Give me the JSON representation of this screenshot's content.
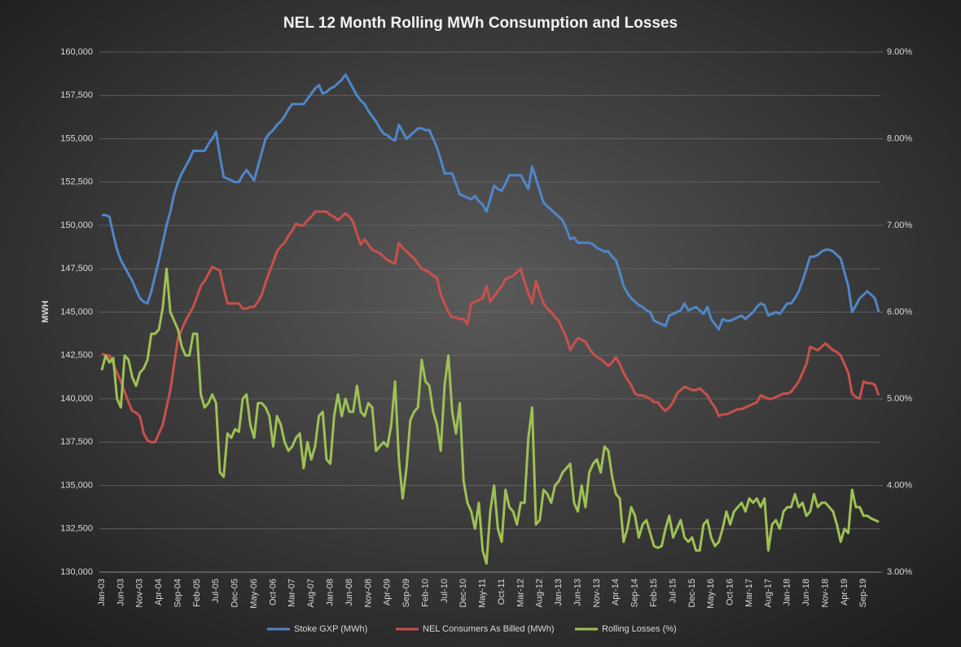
{
  "chart_data": {
    "type": "line",
    "title": "NEL 12 Month Rolling MWh Consumption and Losses",
    "ylabel": "MWH",
    "legend": "bottom",
    "grid": true,
    "categories": [
      "Jan-03",
      null,
      null,
      null,
      null,
      "Jun-03",
      null,
      null,
      null,
      null,
      "Nov-03",
      null,
      null,
      null,
      null,
      "Apr-04",
      null,
      null,
      null,
      null,
      "Sep-04",
      null,
      null,
      null,
      null,
      "Feb-05",
      null,
      null,
      null,
      null,
      "Jul-05",
      null,
      null,
      null,
      null,
      "Dec-05",
      null,
      null,
      null,
      null,
      "May-06",
      null,
      null,
      null,
      null,
      "Oct-06",
      null,
      null,
      null,
      null,
      "Mar-07",
      null,
      null,
      null,
      null,
      "Aug-07",
      null,
      null,
      null,
      null,
      "Jan-08",
      null,
      null,
      null,
      null,
      "Jun-08",
      null,
      null,
      null,
      null,
      "Nov-08",
      null,
      null,
      null,
      null,
      "Apr-09",
      null,
      null,
      null,
      null,
      "Sep-09",
      null,
      null,
      null,
      null,
      "Feb-10",
      null,
      null,
      null,
      null,
      "Jul-10",
      null,
      null,
      null,
      null,
      "Dec-10",
      null,
      null,
      null,
      null,
      "May-11",
      null,
      null,
      null,
      null,
      "Oct-11",
      null,
      null,
      null,
      null,
      "Mar-12",
      null,
      null,
      null,
      null,
      "Aug-12",
      null,
      null,
      null,
      null,
      "Jan-13",
      null,
      null,
      null,
      null,
      "Jun-13",
      null,
      null,
      null,
      null,
      "Nov-13",
      null,
      null,
      null,
      null,
      "Apr-14",
      null,
      null,
      null,
      null,
      "Sep-14",
      null,
      null,
      null,
      null,
      "Feb-15",
      null,
      null,
      null,
      null,
      "Jul-15",
      null,
      null,
      null,
      null,
      "Dec-15",
      null,
      null,
      null,
      null,
      "May-16",
      null,
      null,
      null,
      null,
      "Oct-16",
      null,
      null,
      null,
      null,
      "Mar-17",
      null,
      null,
      null,
      null,
      "Aug-17",
      null,
      null,
      null,
      null,
      "Jan-18",
      null,
      null,
      null,
      null,
      "Jun-18",
      null,
      null,
      null,
      null,
      "Nov-18",
      null,
      null,
      null,
      null,
      "Apr-19",
      null,
      null,
      null,
      null,
      "Sep-19",
      null,
      null,
      null,
      null
    ],
    "ylim": [
      130000,
      160000
    ],
    "yticks": [
      {
        "value": 130000,
        "label": "130,000"
      },
      {
        "value": 132500,
        "label": "132,500"
      },
      {
        "value": 135000,
        "label": "135,000"
      },
      {
        "value": 137500,
        "label": "137,500"
      },
      {
        "value": 140000,
        "label": "140,000"
      },
      {
        "value": 142500,
        "label": "142,500"
      },
      {
        "value": 145000,
        "label": "145,000"
      },
      {
        "value": 147500,
        "label": "147,500"
      },
      {
        "value": 150000,
        "label": "150,000"
      },
      {
        "value": 152500,
        "label": "152,500"
      },
      {
        "value": 155000,
        "label": "155,000"
      },
      {
        "value": 157500,
        "label": "157,500"
      },
      {
        "value": 160000,
        "label": "160,000"
      }
    ],
    "y2lim": [
      3,
      9
    ],
    "y2ticks": [
      {
        "value": 3,
        "label": "3.00%"
      },
      {
        "value": 4,
        "label": "4.00%"
      },
      {
        "value": 5,
        "label": "5.00%"
      },
      {
        "value": 6,
        "label": "6.00%"
      },
      {
        "value": 7,
        "label": "7.00%"
      },
      {
        "value": 8,
        "label": "8.00%"
      },
      {
        "value": 9,
        "label": "9.00%"
      }
    ],
    "series": [
      {
        "name": "Stoke GXP (MWh)",
        "color": "#4f86c9",
        "values": [
          150600,
          150600,
          150500,
          149500,
          148600,
          148000,
          147600,
          147200,
          146800,
          146300,
          145800,
          145600,
          145500,
          146200,
          147100,
          148000,
          149000,
          150000,
          150800,
          151800,
          152500,
          153000,
          153400,
          153800,
          154300,
          154300,
          154300,
          154300,
          154700,
          155000,
          155400,
          154000,
          152800,
          152700,
          152600,
          152500,
          152500,
          152900,
          153200,
          152900,
          152600,
          153400,
          154200,
          155000,
          155300,
          155500,
          155800,
          156000,
          156300,
          156700,
          157000,
          157000,
          157000,
          157000,
          157300,
          157600,
          157900,
          158100,
          157600,
          157700,
          157900,
          158000,
          158200,
          158400,
          158700,
          158300,
          157900,
          157500,
          157200,
          157000,
          156600,
          156300,
          156000,
          155600,
          155300,
          155200,
          155000,
          154900,
          155800,
          155400,
          155000,
          155200,
          155400,
          155600,
          155600,
          155500,
          155500,
          155000,
          154500,
          153800,
          153000,
          153000,
          153000,
          152400,
          151800,
          151700,
          151600,
          151500,
          151700,
          151400,
          151200,
          150800,
          151500,
          152300,
          152100,
          152000,
          152400,
          152900,
          152900,
          152900,
          152900,
          152500,
          152100,
          153400,
          152700,
          152000,
          151300,
          151100,
          150900,
          150700,
          150500,
          150300,
          149800,
          149200,
          149300,
          149000,
          149000,
          149000,
          149000,
          148900,
          148700,
          148600,
          148500,
          148500,
          148200,
          148000,
          147300,
          146500,
          146100,
          145800,
          145600,
          145400,
          145300,
          145100,
          145000,
          144500,
          144400,
          144300,
          144200,
          144800,
          144900,
          145000,
          145100,
          145500,
          145100,
          145200,
          145300,
          145100,
          144900,
          145300,
          144600,
          144300,
          144000,
          144600,
          144500,
          144500,
          144600,
          144700,
          144800,
          144600,
          144800,
          145000,
          145300,
          145500,
          145400,
          144800,
          144900,
          145000,
          144900,
          145200,
          145500,
          145500,
          145800,
          146200,
          146800,
          147500,
          148200,
          148200,
          148300,
          148500,
          148600,
          148600,
          148500,
          148300,
          148100,
          147300,
          146500,
          145000,
          145400,
          145800,
          146000,
          146200,
          146000,
          145800,
          145000
        ]
      },
      {
        "name": "NEL Consumers As Billed (MWh)",
        "color": "#c9504c",
        "values": [
          142600,
          142500,
          142500,
          142000,
          141500,
          141000,
          140400,
          139800,
          139300,
          139200,
          139000,
          138000,
          137600,
          137500,
          137500,
          138000,
          138500,
          139500,
          140500,
          142000,
          143500,
          144000,
          144500,
          144900,
          145300,
          145900,
          146500,
          146800,
          147200,
          147600,
          147500,
          147400,
          146400,
          145500,
          145500,
          145500,
          145500,
          145200,
          145200,
          145300,
          145300,
          145600,
          146000,
          146700,
          147300,
          147900,
          148500,
          148800,
          149000,
          149400,
          149700,
          150100,
          150000,
          150000,
          150300,
          150500,
          150800,
          150800,
          150800,
          150800,
          150600,
          150500,
          150300,
          150500,
          150700,
          150500,
          150200,
          149500,
          148900,
          149200,
          148900,
          148600,
          148500,
          148400,
          148200,
          148000,
          147900,
          147800,
          149000,
          148700,
          148500,
          148300,
          148100,
          147800,
          147500,
          147400,
          147300,
          147100,
          147000,
          146000,
          145500,
          145000,
          144700,
          144700,
          144600,
          144600,
          144300,
          145500,
          145600,
          145700,
          145800,
          146500,
          145600,
          145900,
          146200,
          146500,
          146900,
          147000,
          147100,
          147300,
          147500,
          146700,
          146100,
          145500,
          146800,
          146100,
          145500,
          145200,
          145000,
          144700,
          144500,
          144000,
          143500,
          142800,
          143200,
          143500,
          143400,
          143300,
          142900,
          142600,
          142400,
          142300,
          142100,
          141900,
          142100,
          142400,
          142000,
          141500,
          141100,
          140800,
          140300,
          140200,
          140200,
          140100,
          140000,
          139800,
          139800,
          139500,
          139300,
          139500,
          139800,
          140300,
          140500,
          140700,
          140600,
          140500,
          140500,
          140600,
          140400,
          140200,
          139800,
          139500,
          139000,
          139100,
          139100,
          139200,
          139300,
          139400,
          139400,
          139500,
          139600,
          139700,
          139800,
          140200,
          140100,
          140000,
          140000,
          140100,
          140200,
          140300,
          140300,
          140400,
          140700,
          141000,
          141500,
          142000,
          143000,
          142900,
          142800,
          143000,
          143200,
          143000,
          142800,
          142700,
          142500,
          142000,
          141500,
          140300,
          140100,
          140000,
          141000,
          140900,
          140900,
          140800,
          140200
        ]
      },
      {
        "name": "Rolling Losses (%)",
        "color": "#9dc153",
        "axis": "y2",
        "values": [
          5.33,
          5.5,
          5.42,
          5.47,
          5.0,
          4.9,
          5.5,
          5.45,
          5.25,
          5.15,
          5.3,
          5.35,
          5.45,
          5.75,
          5.75,
          5.8,
          6.05,
          6.5,
          6.0,
          5.9,
          5.8,
          5.6,
          5.5,
          5.5,
          5.75,
          5.75,
          5.05,
          4.9,
          4.95,
          5.05,
          4.95,
          4.15,
          4.1,
          4.6,
          4.55,
          4.65,
          4.62,
          5.0,
          5.05,
          4.7,
          4.55,
          4.95,
          4.95,
          4.9,
          4.8,
          4.45,
          4.8,
          4.7,
          4.5,
          4.4,
          4.45,
          4.55,
          4.6,
          4.2,
          4.5,
          4.3,
          4.45,
          4.8,
          4.85,
          4.3,
          4.25,
          4.8,
          5.05,
          4.8,
          5.0,
          4.85,
          4.85,
          5.15,
          4.85,
          4.8,
          4.95,
          4.9,
          4.4,
          4.45,
          4.5,
          4.45,
          4.7,
          5.2,
          4.3,
          3.85,
          4.2,
          4.75,
          4.85,
          4.9,
          5.45,
          5.2,
          5.15,
          4.85,
          4.7,
          4.4,
          5.15,
          5.5,
          4.85,
          4.6,
          4.95,
          4.05,
          3.8,
          3.7,
          3.5,
          3.8,
          3.25,
          3.1,
          3.7,
          4.0,
          3.5,
          3.35,
          3.95,
          3.75,
          3.7,
          3.55,
          3.8,
          3.8,
          4.55,
          4.9,
          3.55,
          3.6,
          3.95,
          3.9,
          3.8,
          4.0,
          4.05,
          4.15,
          4.2,
          4.25,
          3.8,
          3.7,
          4.0,
          3.75,
          4.15,
          4.25,
          4.3,
          4.15,
          4.45,
          4.4,
          4.1,
          3.9,
          3.85,
          3.35,
          3.5,
          3.75,
          3.65,
          3.4,
          3.55,
          3.6,
          3.45,
          3.3,
          3.28,
          3.3,
          3.5,
          3.65,
          3.4,
          3.5,
          3.6,
          3.4,
          3.35,
          3.4,
          3.25,
          3.25,
          3.55,
          3.6,
          3.4,
          3.3,
          3.35,
          3.5,
          3.7,
          3.55,
          3.7,
          3.75,
          3.8,
          3.7,
          3.85,
          3.8,
          3.85,
          3.75,
          3.85,
          3.25,
          3.55,
          3.6,
          3.5,
          3.7,
          3.75,
          3.75,
          3.9,
          3.75,
          3.8,
          3.65,
          3.7,
          3.9,
          3.75,
          3.8,
          3.8,
          3.75,
          3.7,
          3.55,
          3.35,
          3.5,
          3.45,
          3.95,
          3.75,
          3.75,
          3.65,
          3.65,
          3.62,
          3.6,
          3.58
        ]
      }
    ]
  }
}
